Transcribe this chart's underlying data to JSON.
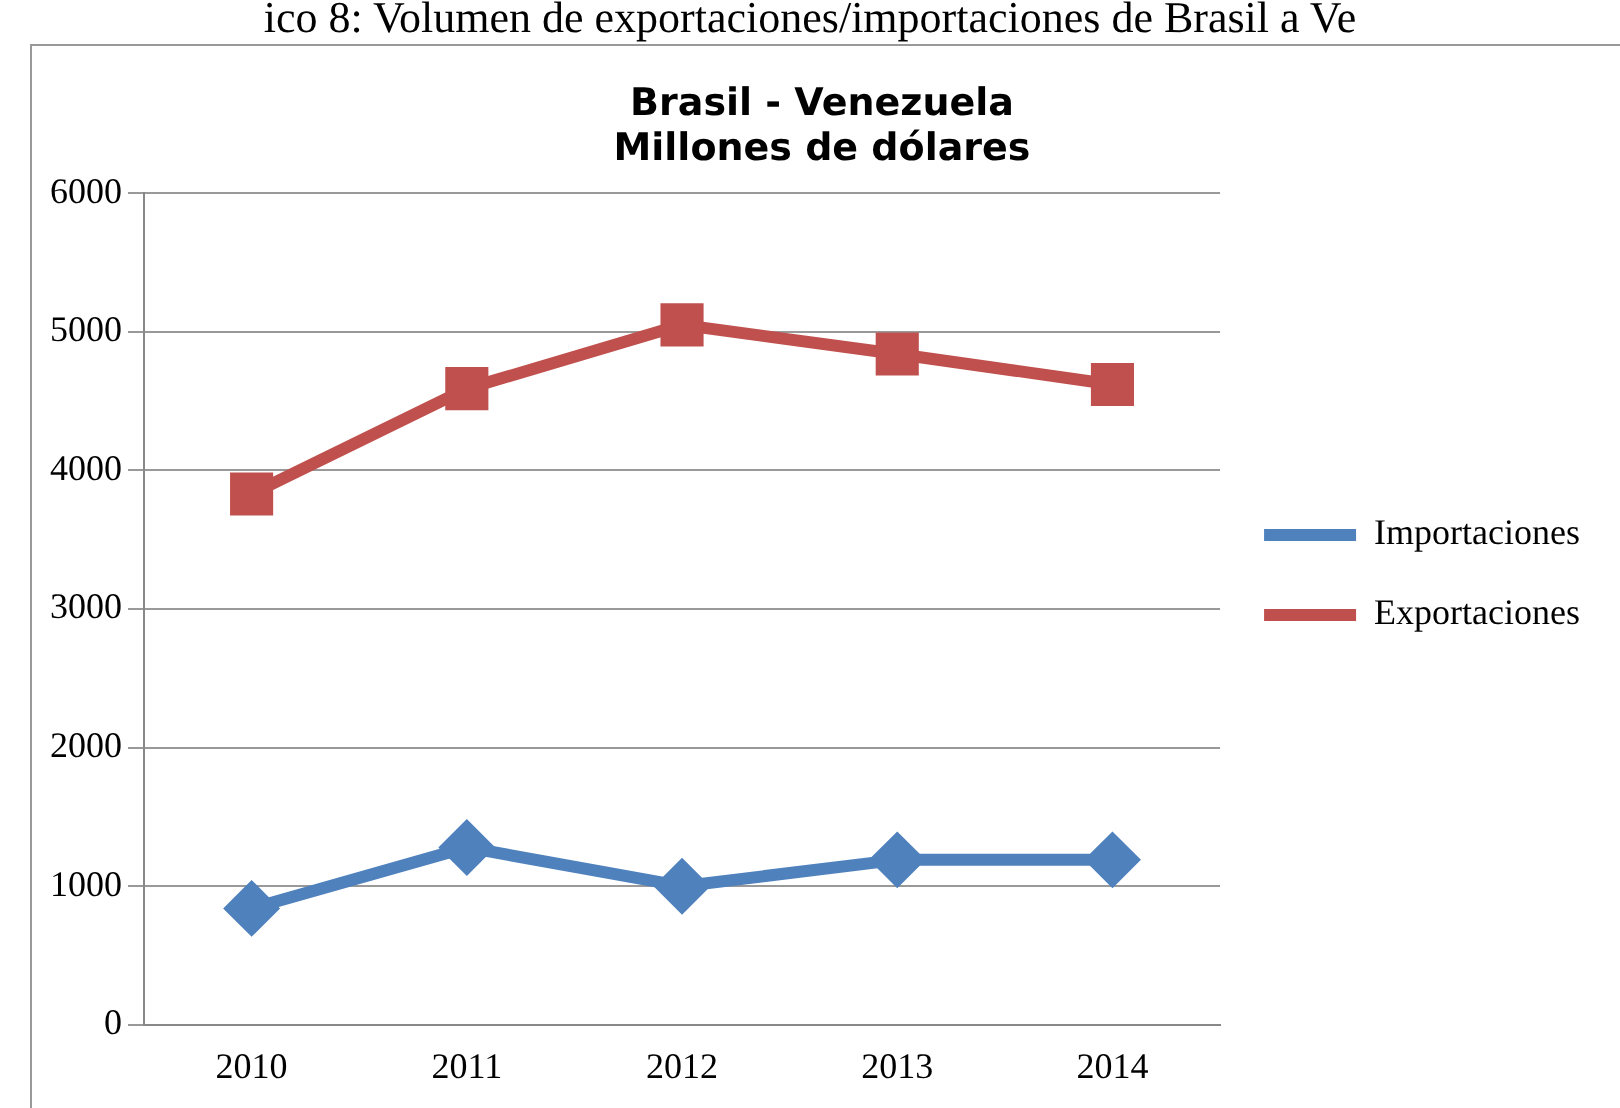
{
  "chart_data": {
    "type": "line",
    "title": [
      "Brasil - Venezuela",
      "Millones de dólares"
    ],
    "annotations": [
      "ico 8: Volumen de exportaciones/importaciones de Brasil a Ve"
    ],
    "categories": [
      "2010",
      "2011",
      "2012",
      "2013",
      "2014"
    ],
    "series": [
      {
        "name": "Importaciones",
        "color": "#4f81bd",
        "values": [
          840,
          1280,
          1000,
          1190,
          1190
        ],
        "marker": "diamond"
      },
      {
        "name": "Exportaciones",
        "color": "#c0504d",
        "values": [
          3830,
          4590,
          5050,
          4840,
          4620
        ],
        "marker": "square"
      }
    ],
    "ylim": [
      0,
      6000
    ],
    "yticks": [
      0,
      1000,
      2000,
      3000,
      4000,
      5000,
      6000
    ],
    "grid": "y",
    "legend": "right",
    "line_style": "solid"
  }
}
